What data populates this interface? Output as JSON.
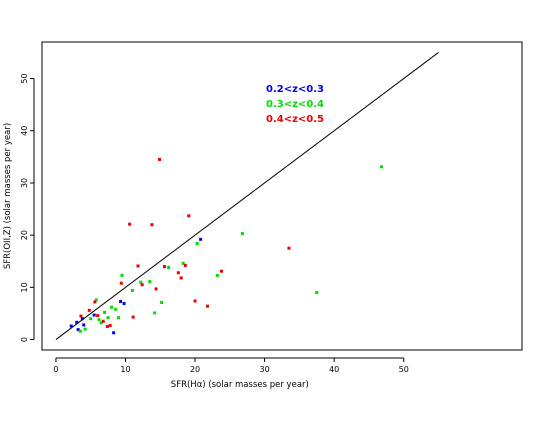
{
  "chart_data": {
    "type": "scatter",
    "xlabel": "SFR(Hα) (solar masses per year)",
    "ylabel": "SFR(OII,Z) (solar masses per year)",
    "xlim": [
      -2,
      67
    ],
    "ylim": [
      -2,
      57
    ],
    "xticks": [
      0,
      10,
      20,
      30,
      40,
      50
    ],
    "yticks": [
      0,
      10,
      20,
      30,
      40,
      50
    ],
    "reference_line": {
      "x": [
        0,
        55
      ],
      "y": [
        0,
        55
      ]
    },
    "grid": false,
    "legend_placement": "top-center",
    "series": [
      {
        "name": "0.2<z<0.3",
        "color": "#0000ee",
        "points": [
          [
            2.2,
            2.6
          ],
          [
            3.0,
            3.3
          ],
          [
            3.2,
            1.9
          ],
          [
            3.8,
            4.0
          ],
          [
            4.0,
            2.8
          ],
          [
            5.5,
            4.7
          ],
          [
            8.3,
            1.3
          ],
          [
            9.3,
            7.3
          ],
          [
            9.8,
            6.9
          ],
          [
            20.8,
            19.2
          ]
        ]
      },
      {
        "name": "0.3<z<0.4",
        "color": "#00dd00",
        "points": [
          [
            3.5,
            1.6
          ],
          [
            4.2,
            2.0
          ],
          [
            5.0,
            4.0
          ],
          [
            5.8,
            7.6
          ],
          [
            6.2,
            3.8
          ],
          [
            6.5,
            3.2
          ],
          [
            7.0,
            5.2
          ],
          [
            7.5,
            4.2
          ],
          [
            8.0,
            6.2
          ],
          [
            8.6,
            5.8
          ],
          [
            9.0,
            4.2
          ],
          [
            9.5,
            12.3
          ],
          [
            11.0,
            9.4
          ],
          [
            12.2,
            11.0
          ],
          [
            13.5,
            11.1
          ],
          [
            14.2,
            5.1
          ],
          [
            15.2,
            7.1
          ],
          [
            16.2,
            13.8
          ],
          [
            18.3,
            14.6
          ],
          [
            20.3,
            18.4
          ],
          [
            23.2,
            12.3
          ],
          [
            26.8,
            20.3
          ],
          [
            37.5,
            9.0
          ],
          [
            46.8,
            33.1
          ]
        ]
      },
      {
        "name": "0.4<z<0.5",
        "color": "#ee0000",
        "points": [
          [
            3.6,
            4.5
          ],
          [
            4.8,
            5.6
          ],
          [
            5.6,
            7.2
          ],
          [
            6.0,
            4.6
          ],
          [
            6.8,
            3.5
          ],
          [
            7.4,
            2.5
          ],
          [
            7.8,
            2.7
          ],
          [
            9.4,
            10.8
          ],
          [
            10.6,
            22.1
          ],
          [
            11.1,
            4.3
          ],
          [
            11.8,
            14.1
          ],
          [
            12.4,
            10.5
          ],
          [
            13.8,
            22.0
          ],
          [
            14.4,
            9.7
          ],
          [
            14.9,
            34.5
          ],
          [
            15.6,
            14.0
          ],
          [
            17.6,
            12.8
          ],
          [
            18.0,
            11.8
          ],
          [
            18.6,
            14.2
          ],
          [
            19.1,
            23.7
          ],
          [
            20.0,
            7.4
          ],
          [
            21.8,
            6.4
          ],
          [
            23.8,
            13.1
          ],
          [
            33.5,
            17.5
          ]
        ]
      }
    ]
  },
  "colors": {
    "axis": "#000000",
    "line": "#000000",
    "background": "#ffffff"
  }
}
